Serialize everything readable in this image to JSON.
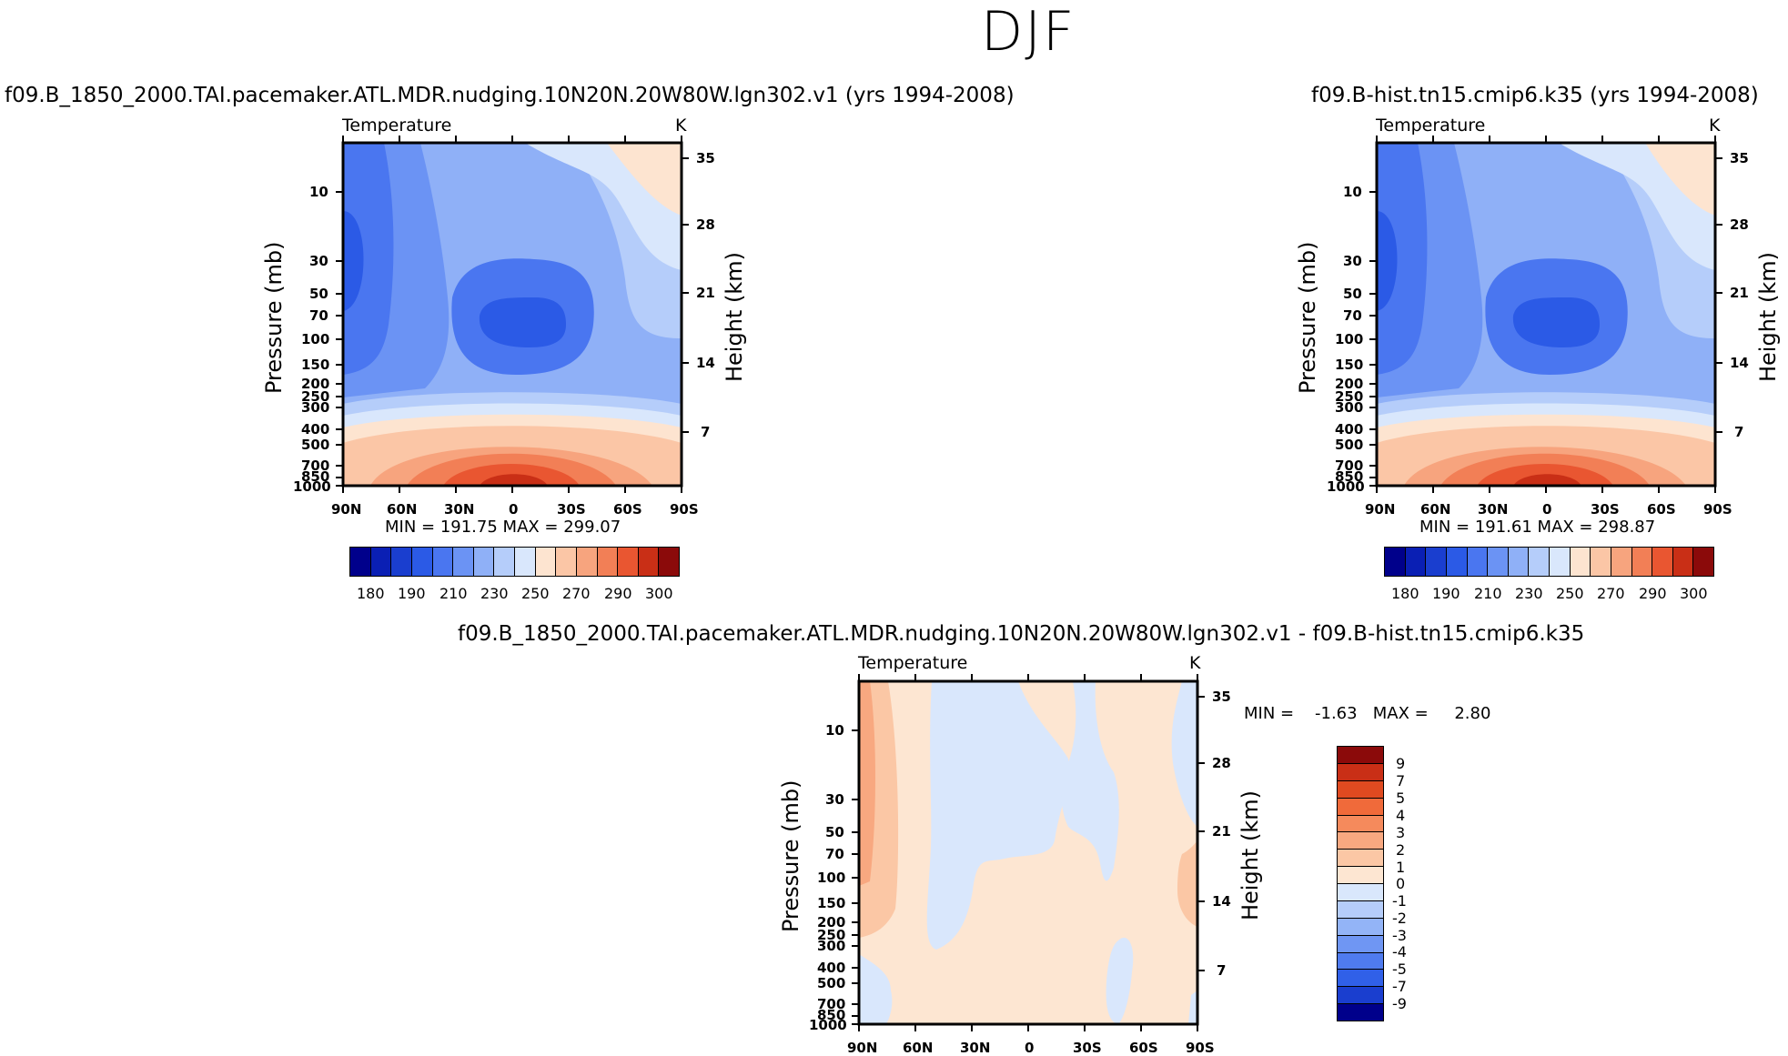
{
  "figure": {
    "title": "DJF"
  },
  "chart_data": [
    {
      "type": "heatmap",
      "title": "f09.B_1850_2000.TAI.pacemaker.ATL.MDR.nudging.10N20N.20W80W.lgn302.v1  (yrs 1994-2008)",
      "subtitle_left": "Temperature",
      "subtitle_right": "K",
      "xlabel": "",
      "ylabel": "Pressure  (mb)",
      "ylabel_right": "Height  (km)",
      "x_ticks": [
        "90N",
        "60N",
        "30N",
        "0",
        "30S",
        "60S",
        "90S"
      ],
      "y_ticks": [
        "10",
        "30",
        "50",
        "70",
        "100",
        "150",
        "200",
        "250",
        "300",
        "400",
        "500",
        "700",
        "850",
        "1000"
      ],
      "y_right_ticks": [
        "35",
        "28",
        "21",
        "14",
        "7"
      ],
      "min_max_label": "MIN = 191.75   MAX = 299.07",
      "colorbar_labels": [
        "180",
        "190",
        "210",
        "230",
        "250",
        "270",
        "290",
        "300"
      ],
      "colorbar_levels": [
        180,
        185,
        190,
        200,
        210,
        220,
        230,
        240,
        250,
        260,
        270,
        280,
        290,
        295,
        300
      ],
      "min": 191.75,
      "max": 299.07
    },
    {
      "type": "heatmap",
      "title": "f09.B-hist.tn15.cmip6.k35  (yrs 1994-2008)",
      "subtitle_left": "Temperature",
      "subtitle_right": "K",
      "xlabel": "",
      "ylabel": "Pressure  (mb)",
      "ylabel_right": "Height  (km)",
      "x_ticks": [
        "90N",
        "60N",
        "30N",
        "0",
        "30S",
        "60S",
        "90S"
      ],
      "y_ticks": [
        "10",
        "30",
        "50",
        "70",
        "100",
        "150",
        "200",
        "250",
        "300",
        "400",
        "500",
        "700",
        "850",
        "1000"
      ],
      "y_right_ticks": [
        "35",
        "28",
        "21",
        "14",
        "7"
      ],
      "min_max_label": "MIN = 191.61   MAX = 298.87",
      "colorbar_labels": [
        "180",
        "190",
        "210",
        "230",
        "250",
        "270",
        "290",
        "300"
      ],
      "colorbar_levels": [
        180,
        185,
        190,
        200,
        210,
        220,
        230,
        240,
        250,
        260,
        270,
        280,
        290,
        295,
        300
      ],
      "min": 191.61,
      "max": 298.87
    },
    {
      "type": "heatmap",
      "title": "f09.B_1850_2000.TAI.pacemaker.ATL.MDR.nudging.10N20N.20W80W.lgn302.v1  -  f09.B-hist.tn15.cmip6.k35",
      "subtitle_left": "Temperature",
      "subtitle_right": "K",
      "xlabel": "",
      "ylabel": "Pressure  (mb)",
      "ylabel_right": "Height  (km)",
      "x_ticks": [
        "90N",
        "60N",
        "30N",
        "0",
        "30S",
        "60S",
        "90S"
      ],
      "y_ticks": [
        "10",
        "30",
        "50",
        "70",
        "100",
        "150",
        "200",
        "250",
        "300",
        "400",
        "500",
        "700",
        "850",
        "1000"
      ],
      "y_right_ticks": [
        "35",
        "28",
        "21",
        "14",
        "7"
      ],
      "min_max_label": "MIN =    -1.63   MAX =     2.80",
      "colorbar_labels": [
        "9",
        "7",
        "5",
        "4",
        "3",
        "2",
        "1",
        "0",
        "-1",
        "-2",
        "-3",
        "-4",
        "-5",
        "-7",
        "-9"
      ],
      "min": -1.63,
      "max": 2.8
    }
  ],
  "colors": {
    "colorbar_top": [
      "#00008b",
      "#0a1fb4",
      "#1a3ecf",
      "#2b5ae6",
      "#4a76f0",
      "#6b93f4",
      "#8fb0f7",
      "#b5cdfa",
      "#d9e7fc",
      "#fde4d0",
      "#fbc6a6",
      "#f7a47e",
      "#f27f56",
      "#e95631",
      "#c92f16",
      "#8b0a0a"
    ],
    "colorbar_diff": [
      "#8b0a0a",
      "#c92f16",
      "#e04a20",
      "#f06a3a",
      "#f58a5c",
      "#f8a880",
      "#fbc7a5",
      "#fde6d2",
      "#d9e7fc",
      "#b5cdfa",
      "#93b4f7",
      "#6f96f3",
      "#4f7bef",
      "#3060e8",
      "#1a3ecf",
      "#00008b"
    ]
  }
}
